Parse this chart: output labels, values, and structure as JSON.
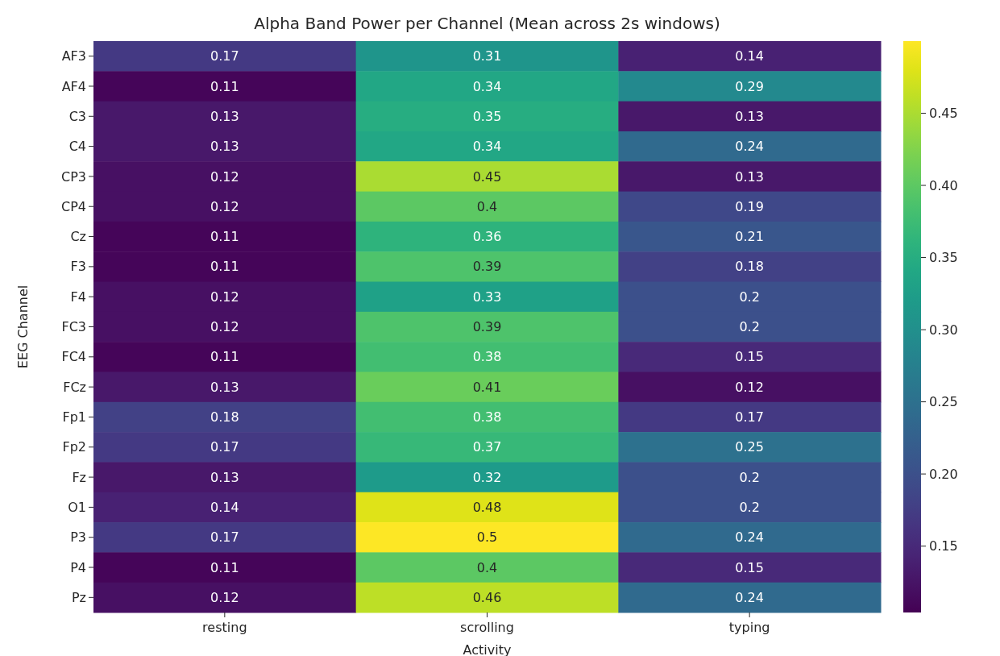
{
  "chart_data": {
    "type": "heatmap",
    "title": "Alpha Band Power per Channel (Mean across 2s windows)",
    "xlabel": "Activity",
    "ylabel": "EEG Channel",
    "categories": [
      "resting",
      "scrolling",
      "typing"
    ],
    "y_categories": [
      "AF3",
      "AF4",
      "C3",
      "C4",
      "CP3",
      "CP4",
      "Cz",
      "F3",
      "F4",
      "FC3",
      "FC4",
      "FCz",
      "Fp1",
      "Fp2",
      "Fz",
      "O1",
      "P3",
      "P4",
      "Pz"
    ],
    "cells": [
      [
        0.17,
        0.31,
        0.14
      ],
      [
        0.11,
        0.34,
        0.29
      ],
      [
        0.13,
        0.35,
        0.13
      ],
      [
        0.13,
        0.34,
        0.24
      ],
      [
        0.12,
        0.45,
        0.13
      ],
      [
        0.12,
        0.4,
        0.19
      ],
      [
        0.11,
        0.36,
        0.21
      ],
      [
        0.11,
        0.39,
        0.18
      ],
      [
        0.12,
        0.33,
        0.2
      ],
      [
        0.12,
        0.39,
        0.2
      ],
      [
        0.11,
        0.38,
        0.15
      ],
      [
        0.13,
        0.41,
        0.12
      ],
      [
        0.18,
        0.38,
        0.17
      ],
      [
        0.17,
        0.37,
        0.25
      ],
      [
        0.13,
        0.32,
        0.2
      ],
      [
        0.14,
        0.48,
        0.2
      ],
      [
        0.17,
        0.5,
        0.24
      ],
      [
        0.11,
        0.4,
        0.15
      ],
      [
        0.12,
        0.46,
        0.24
      ]
    ],
    "data_labels": true,
    "clim": [
      0.104,
      0.5
    ],
    "cticks": [
      0.15,
      {
        "value": 0.2,
        "label": "0.20"
      },
      0.25,
      {
        "value": 0.3,
        "label": "0.30"
      },
      0.35,
      {
        "value": 0.4,
        "label": "0.40"
      },
      0.45
    ]
  }
}
